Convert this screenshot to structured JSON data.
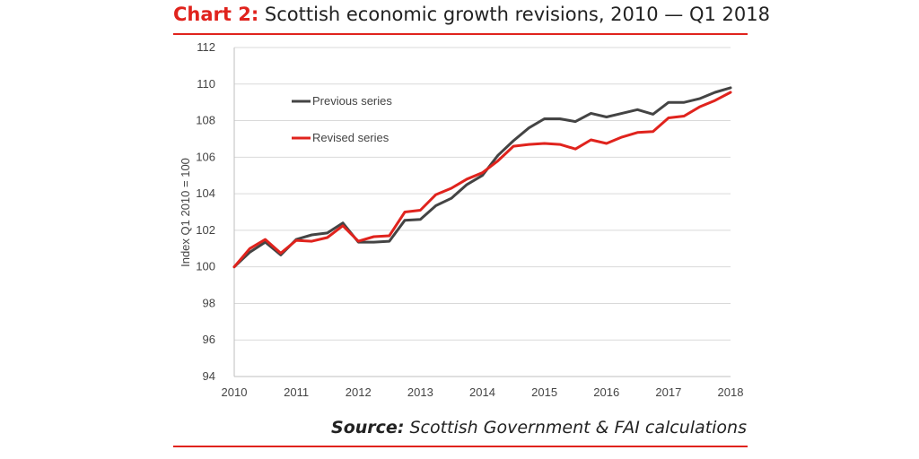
{
  "header": {
    "title_prefix": "Chart 2:",
    "title_text": " Scottish economic growth revisions, 2010 — Q1 2018"
  },
  "footer": {
    "source_label": "Source:",
    "source_text": " Scottish Government & FAI calculations"
  },
  "colors": {
    "accent": "#e0231d",
    "previous_series": "#444444",
    "revised_series": "#e0231d",
    "grid": "#d9d9d9"
  },
  "chart_data": {
    "type": "line",
    "title": "",
    "xlabel": "",
    "ylabel": "Index Q1 2010 = 100",
    "ylim": [
      94,
      112
    ],
    "yticks": [
      94,
      96,
      98,
      100,
      102,
      104,
      106,
      108,
      110,
      112
    ],
    "xlim": [
      2010,
      2018
    ],
    "xticks": [
      "2010",
      "2011",
      "2012",
      "2013",
      "2014",
      "2015",
      "2016",
      "2017",
      "2018"
    ],
    "grid": true,
    "legend": "top-left",
    "x": [
      2010.0,
      2010.25,
      2010.5,
      2010.75,
      2011.0,
      2011.25,
      2011.5,
      2011.75,
      2012.0,
      2012.25,
      2012.5,
      2012.75,
      2013.0,
      2013.25,
      2013.5,
      2013.75,
      2014.0,
      2014.25,
      2014.5,
      2014.75,
      2015.0,
      2015.25,
      2015.5,
      2015.75,
      2016.0,
      2016.25,
      2016.5,
      2016.75,
      2017.0,
      2017.25,
      2017.5,
      2017.75,
      2018.0
    ],
    "series": [
      {
        "name": "Previous series",
        "color": "#444444",
        "values": [
          100.0,
          100.8,
          101.35,
          100.65,
          101.5,
          101.75,
          101.85,
          102.4,
          101.35,
          101.35,
          101.4,
          102.55,
          102.6,
          103.35,
          103.75,
          104.5,
          105.0,
          106.1,
          106.9,
          107.6,
          108.1,
          108.1,
          107.95,
          108.4,
          108.2,
          108.4,
          108.6,
          108.35,
          109.0,
          109.0,
          109.2,
          109.55,
          109.8
        ]
      },
      {
        "name": "Revised series",
        "color": "#e0231d",
        "values": [
          100.0,
          101.0,
          101.5,
          100.75,
          101.45,
          101.4,
          101.6,
          102.25,
          101.4,
          101.65,
          101.7,
          103.0,
          103.1,
          103.95,
          104.3,
          104.8,
          105.15,
          105.8,
          106.6,
          106.7,
          106.75,
          106.7,
          106.45,
          106.95,
          106.75,
          107.1,
          107.35,
          107.4,
          108.15,
          108.25,
          108.75,
          109.1,
          109.55
        ]
      }
    ]
  }
}
